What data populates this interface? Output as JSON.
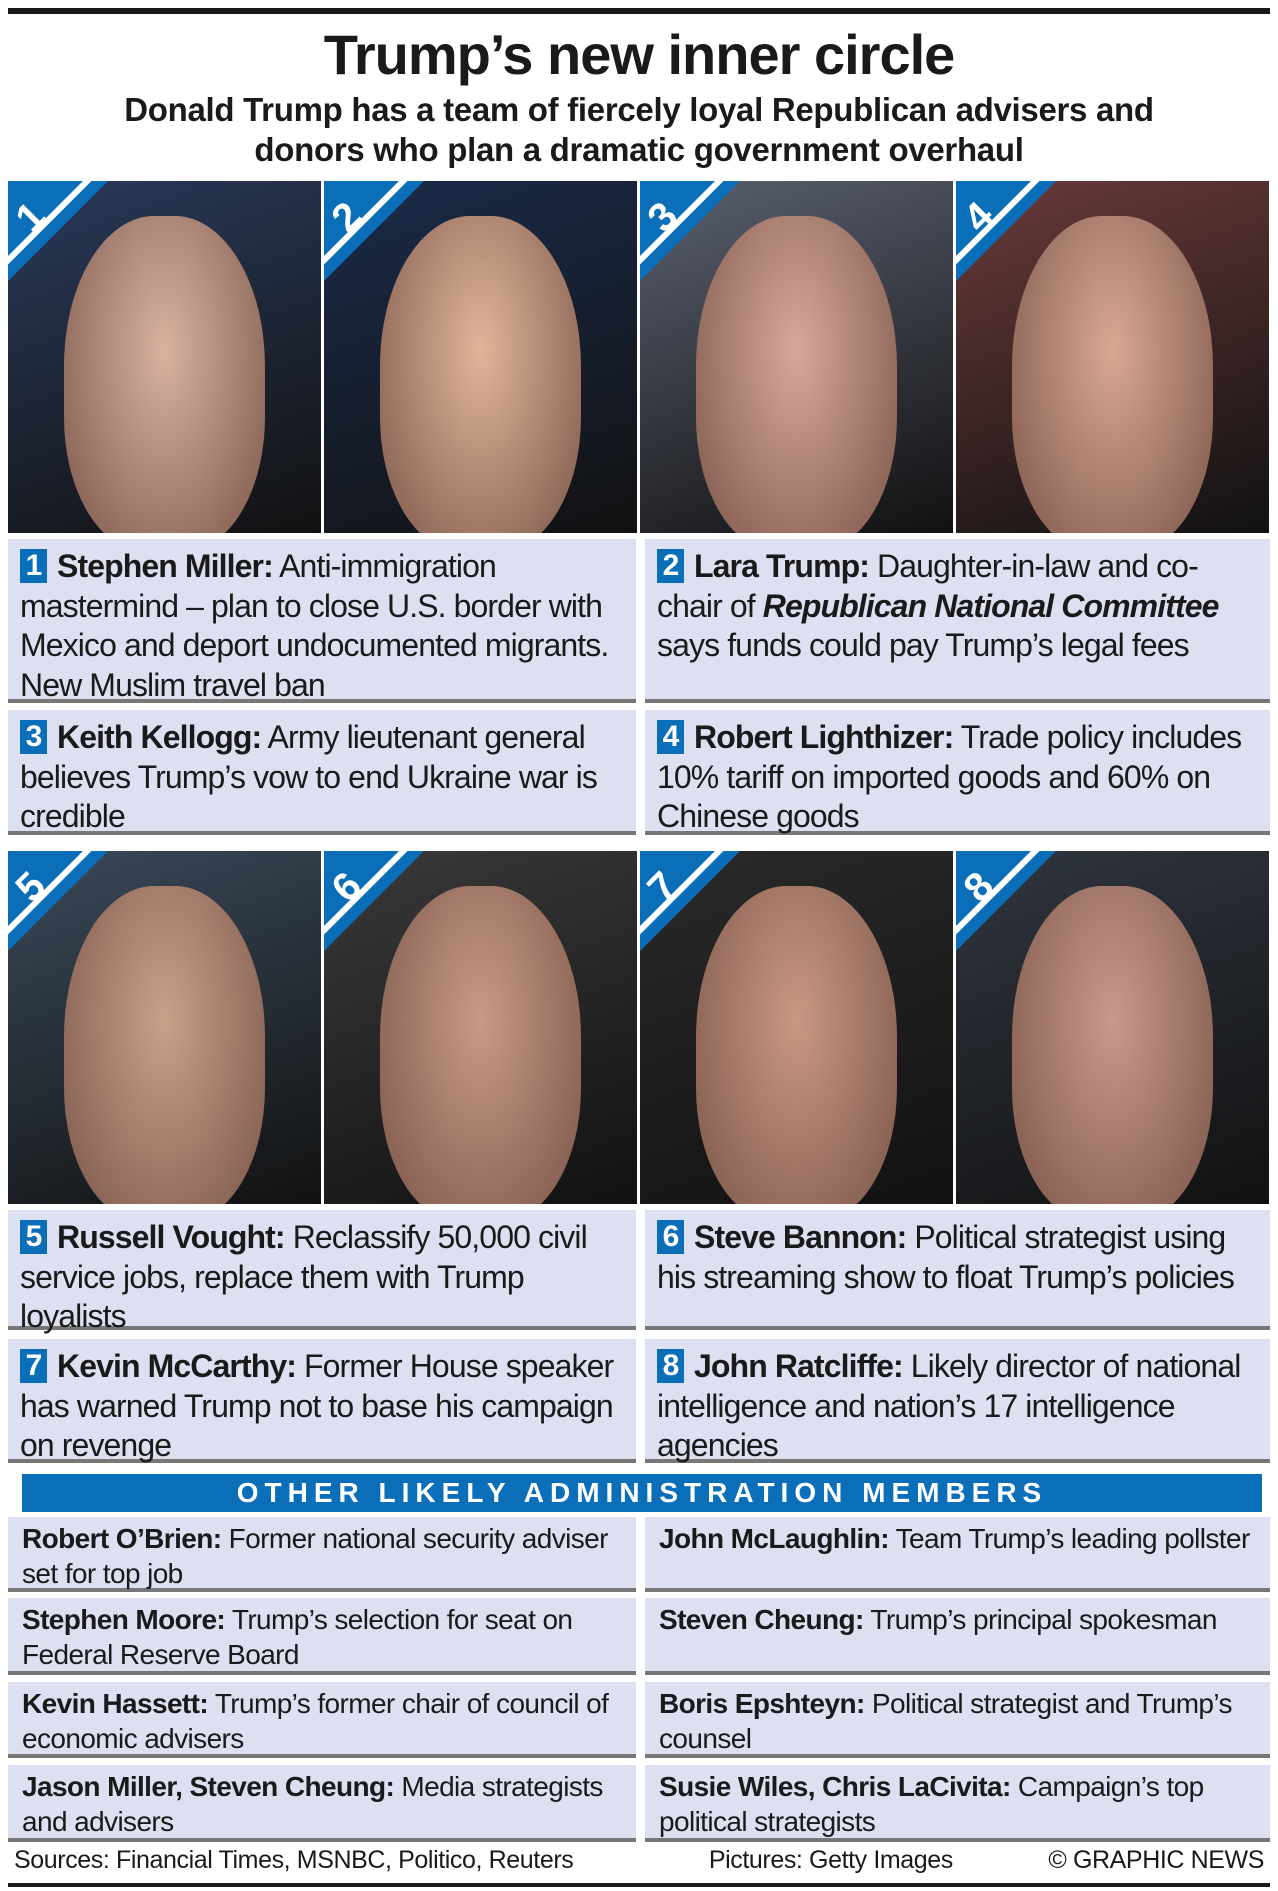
{
  "header": {
    "title": "Trump’s new inner circle",
    "subtitle_line1": "Donald Trump has a team of fiercely loyal Republican advisers and",
    "subtitle_line2": "donors who plan a dramatic government overhaul"
  },
  "accent_color": "#0a6fb8",
  "people": [
    {
      "num": "1",
      "name": "Stephen Miller:",
      "desc": "Anti-immigration mastermind – plan to close U.S. border with Mexico and deport undocumented migrants. New Muslim travel ban"
    },
    {
      "num": "2",
      "name": "Lara Trump:",
      "desc_pre": "Daughter-in-law and co-chair of",
      "desc_em": "Republican National Committee",
      "desc_post": "says funds could pay Trump’s legal fees"
    },
    {
      "num": "3",
      "name": "Keith Kellogg:",
      "desc": "Army lieutenant general believes Trump’s vow to end Ukraine war is credible"
    },
    {
      "num": "4",
      "name": "Robert Lighthizer:",
      "desc": "Trade policy includes 10% tariff on imported goods and 60% on Chinese goods"
    },
    {
      "num": "5",
      "name": "Russell Vought:",
      "desc": "Reclassify 50,000 civil service jobs, replace them with Trump loyalists"
    },
    {
      "num": "6",
      "name": "Steve Bannon:",
      "desc": "Political strategist using his streaming show to float Trump’s policies"
    },
    {
      "num": "7",
      "name": "Kevin McCarthy:",
      "desc": "Former House speaker has warned Trump not to base his campaign on revenge"
    },
    {
      "num": "8",
      "name": "John Ratcliffe:",
      "desc": "Likely director of national intelligence and nation’s 17 intelligence agencies"
    }
  ],
  "others": {
    "heading": "OTHER LIKELY ADMINISTRATION MEMBERS",
    "items": [
      {
        "name": "Robert O’Brien:",
        "desc": "Former national security adviser set for top job"
      },
      {
        "name": "John McLaughlin:",
        "desc": "Team Trump’s leading pollster"
      },
      {
        "name": "Stephen Moore:",
        "desc": "Trump’s selection for seat on Federal Reserve Board"
      },
      {
        "name": "Steven Cheung:",
        "desc": "Trump’s principal spokesman"
      },
      {
        "name": "Kevin Hassett:",
        "desc": "Trump’s former chair of council of economic advisers"
      },
      {
        "name": "Boris Epshteyn:",
        "desc": "Political strategist and Trump’s counsel"
      },
      {
        "name": "Jason Miller, Steven Cheung:",
        "desc": "Media strategists and advisers"
      },
      {
        "name": "Susie Wiles, Chris LaCivita:",
        "desc": "Campaign’s top political strategists"
      }
    ]
  },
  "footer": {
    "sources": "Sources: Financial Times, MSNBC, Politico, Reuters",
    "pictures": "Pictures: Getty Images",
    "credit": "© GRAPHIC NEWS"
  }
}
